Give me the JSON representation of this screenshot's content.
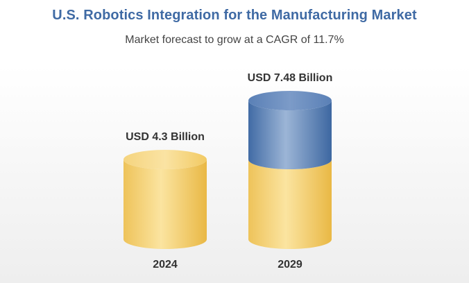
{
  "chart_data": {
    "type": "bar",
    "title": "U.S. Robotics Integration for the Manufacturing Market",
    "subtitle": "Market forecast to grow at a CAGR of 11.7%",
    "categories": [
      "2024",
      "2029"
    ],
    "values": [
      4.3,
      7.48
    ],
    "data_labels": [
      "USD 4.3 Billion",
      "USD 7.48 Billion"
    ],
    "ylim": [
      0,
      7.48
    ],
    "grid": false,
    "colors": {
      "base": "#f2cd6b",
      "growth": "#4f77ad",
      "title": "#3f6aa4"
    }
  }
}
